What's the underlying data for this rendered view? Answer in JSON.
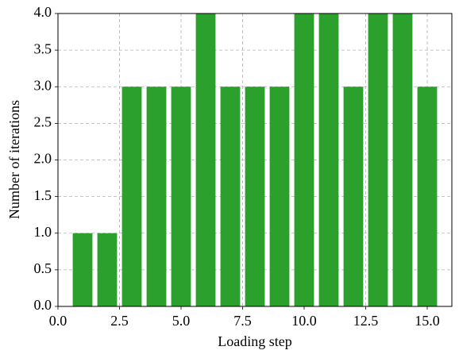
{
  "chart_data": {
    "type": "bar",
    "xlabel": "Loading step",
    "ylabel": "Number of iterations",
    "x": [
      1,
      2,
      3,
      4,
      5,
      6,
      7,
      8,
      9,
      10,
      11,
      12,
      13,
      14,
      15
    ],
    "values": [
      1,
      1,
      3,
      3,
      3,
      4,
      3,
      3,
      3,
      4,
      4,
      3,
      4,
      4,
      3
    ],
    "color": "#2ca02c",
    "xlim": [
      0,
      16
    ],
    "ylim": [
      0,
      4
    ],
    "xticks": [
      {
        "value": 0,
        "label": "0.0"
      },
      {
        "value": 2.5,
        "label": "2.5"
      },
      {
        "value": 5,
        "label": "5.0"
      },
      {
        "value": 7.5,
        "label": "7.5"
      },
      {
        "value": 10,
        "label": "10.0"
      },
      {
        "value": 12.5,
        "label": "12.5"
      },
      {
        "value": 15,
        "label": "15.0"
      }
    ],
    "yticks": [
      {
        "value": 0,
        "label": "0.0"
      },
      {
        "value": 0.5,
        "label": "0.5"
      },
      {
        "value": 1,
        "label": "1.0"
      },
      {
        "value": 1.5,
        "label": "1.5"
      },
      {
        "value": 2,
        "label": "2.0"
      },
      {
        "value": 2.5,
        "label": "2.5"
      },
      {
        "value": 3,
        "label": "3.0"
      },
      {
        "value": 3.5,
        "label": "3.5"
      },
      {
        "value": 4,
        "label": "4.0"
      }
    ],
    "grid": true
  }
}
